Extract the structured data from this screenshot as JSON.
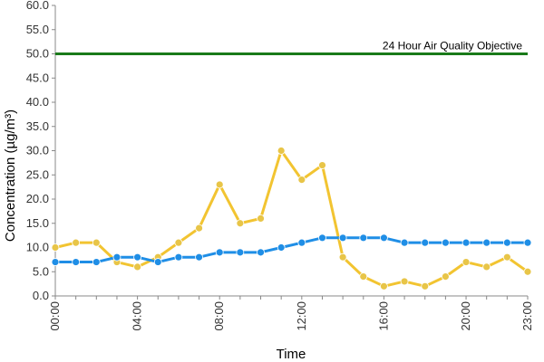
{
  "chart_data": {
    "type": "line",
    "title": "",
    "xlabel": "Time",
    "ylabel": "Concentration (µg/m³)",
    "ylim": [
      0,
      60
    ],
    "y_ticks": [
      "0.0",
      "5.0",
      "10.0",
      "15.0",
      "20.0",
      "25.0",
      "30.0",
      "35.0",
      "40.0",
      "45.0",
      "50.0",
      "55.0",
      "60.0"
    ],
    "x": [
      0,
      1,
      2,
      3,
      4,
      5,
      6,
      7,
      8,
      9,
      10,
      11,
      12,
      13,
      14,
      15,
      16,
      17,
      18,
      19,
      20,
      21,
      22,
      23
    ],
    "x_ticks": [
      {
        "value": 0,
        "label": "00:00"
      },
      {
        "value": 4,
        "label": "04:00"
      },
      {
        "value": 8,
        "label": "08:00"
      },
      {
        "value": 12,
        "label": "12:00"
      },
      {
        "value": 16,
        "label": "16:00"
      },
      {
        "value": 20,
        "label": "20:00"
      },
      {
        "value": 23,
        "label": "23:00"
      }
    ],
    "series": [
      {
        "color": "#f2c431",
        "marker_color": "#e8c548",
        "values": [
          10,
          11,
          11,
          7,
          6,
          8,
          11,
          14,
          23,
          15,
          16,
          30,
          24,
          27,
          8,
          4,
          2,
          3,
          2,
          4,
          7,
          6,
          8,
          5
        ]
      },
      {
        "color": "#1f8ee6",
        "marker_color": "#1f8ee6",
        "values": [
          7,
          7,
          7,
          8,
          8,
          7,
          8,
          8,
          9,
          9,
          9,
          10,
          11,
          12,
          12,
          12,
          12,
          11,
          11,
          11,
          11,
          11,
          11,
          11
        ]
      }
    ],
    "reference_line": {
      "value": 50,
      "label": "24 Hour Air Quality Objective",
      "color": "#1a7a1a"
    },
    "grid": false,
    "legend": "none"
  }
}
